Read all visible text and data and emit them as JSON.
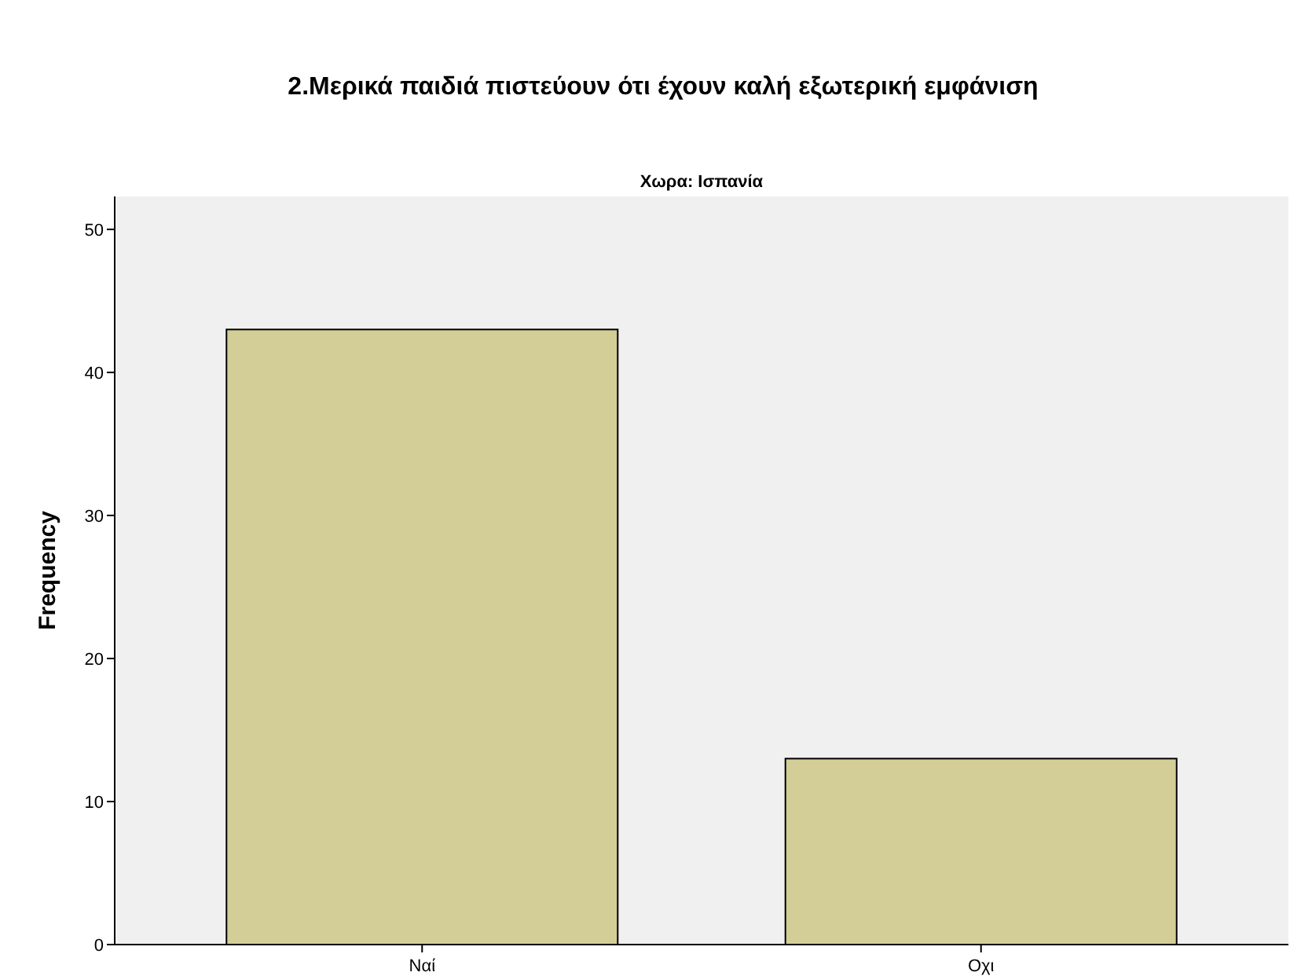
{
  "chart_data": {
    "type": "bar",
    "title": "2.Μερικά παιδιά πιστεύουν ότι έχουν καλή εξωτερική εμφάνιση",
    "subtitle": "Χωρα: Ισπανία",
    "ylabel": "Frequency",
    "categories": [
      "Ναί",
      "Οχι"
    ],
    "values": [
      43,
      13
    ],
    "color": "#d3ce97",
    "ylim": [
      0,
      52.3
    ],
    "yticks": [
      0,
      10,
      20,
      30,
      40,
      50
    ],
    "grid": false
  }
}
